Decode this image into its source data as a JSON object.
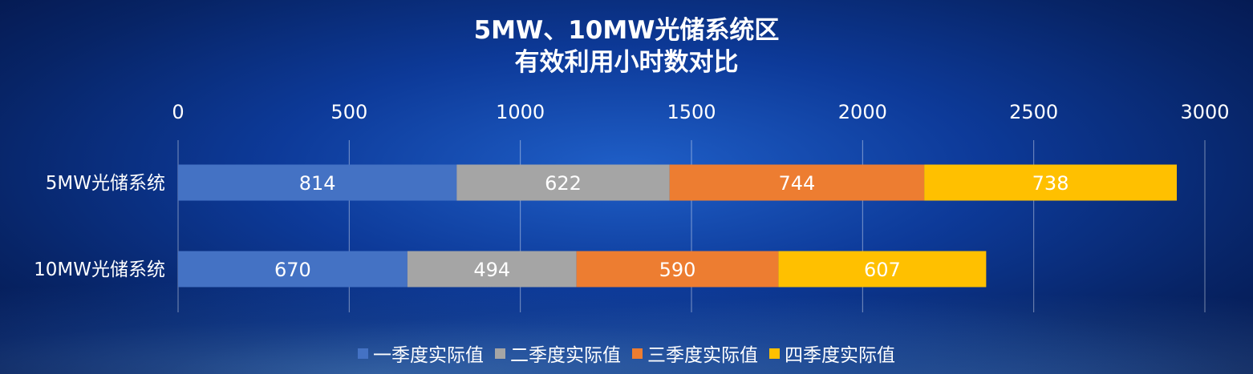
{
  "chart_data": {
    "type": "bar",
    "orientation": "horizontal",
    "stacked": true,
    "title": [
      "5MW、10MW光储系统区",
      "有效利用小时数对比"
    ],
    "categories": [
      "5MW光储系统",
      "10MW光储系统"
    ],
    "series": [
      {
        "name": "一季度实际值",
        "color": "#4472c4",
        "values": [
          814,
          670
        ]
      },
      {
        "name": "二季度实际值",
        "color": "#a5a5a5",
        "values": [
          622,
          494
        ]
      },
      {
        "name": "三季度实际值",
        "color": "#ed7d31",
        "values": [
          744,
          590
        ]
      },
      {
        "name": "四季度实际值",
        "color": "#ffc000",
        "values": [
          738,
          607
        ]
      }
    ],
    "xlim": [
      0,
      3000
    ],
    "xticks": [
      0,
      500,
      1000,
      1500,
      2000,
      2500,
      3000
    ],
    "grid": true,
    "axis_position": "top",
    "legend_position": "bottom"
  }
}
